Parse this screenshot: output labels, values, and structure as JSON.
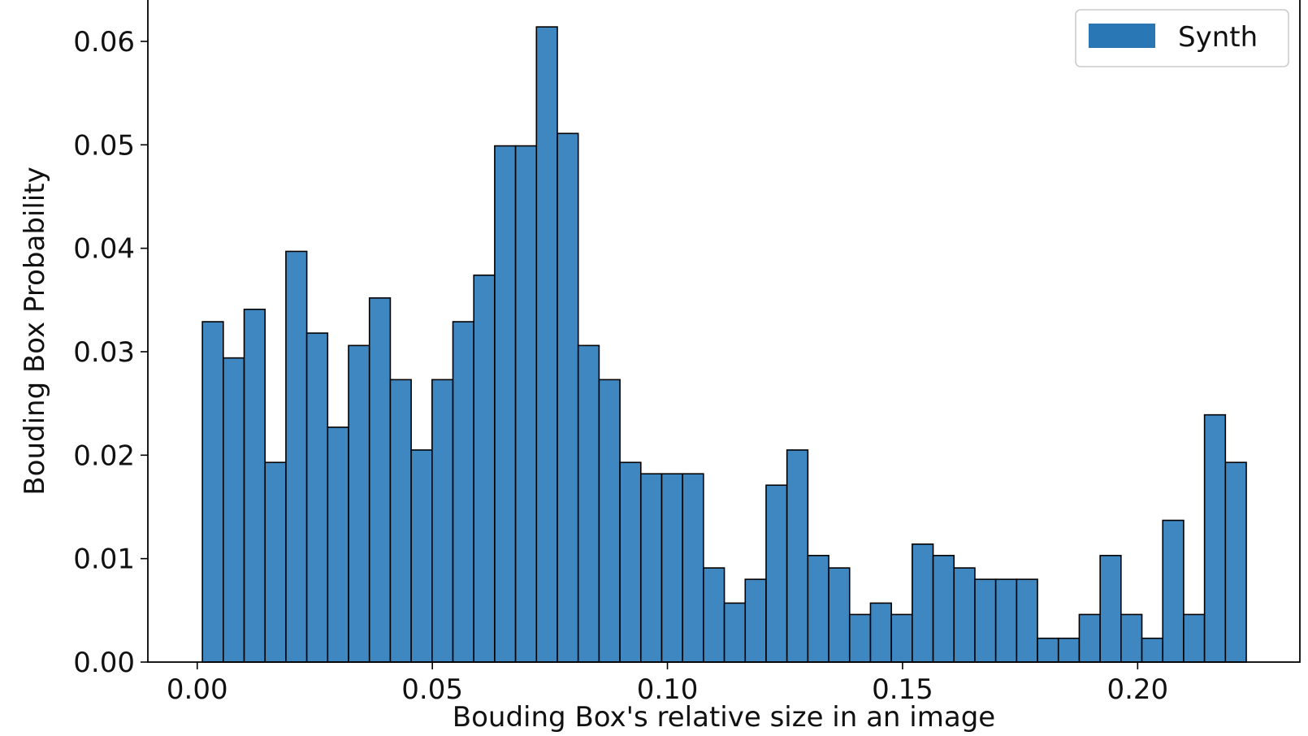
{
  "chart_data": {
    "type": "bar",
    "title": "",
    "xlabel": "Bouding Box's relative size in an image",
    "ylabel": "Bouding Box Probability",
    "xlim": [
      -0.0105,
      0.2345
    ],
    "ylim": [
      0,
      0.064
    ],
    "xticks": [
      0.0,
      0.05,
      0.1,
      0.15,
      0.2
    ],
    "xtick_labels": [
      "0.00",
      "0.05",
      "0.10",
      "0.15",
      "0.20"
    ],
    "yticks": [
      0.0,
      0.01,
      0.02,
      0.03,
      0.04,
      0.05,
      0.06
    ],
    "ytick_labels": [
      "0.00",
      "0.01",
      "0.02",
      "0.03",
      "0.04",
      "0.05",
      "0.06"
    ],
    "grid": false,
    "legend_position": "top-right",
    "bin_start": 0.0011,
    "bin_width": 0.00444,
    "series": [
      {
        "name": "Synth",
        "color": "#3f87c0",
        "edge_color": "#000000",
        "values": [
          0.0329,
          0.0294,
          0.0341,
          0.0193,
          0.0397,
          0.0318,
          0.0227,
          0.0306,
          0.0352,
          0.0273,
          0.0205,
          0.0273,
          0.0329,
          0.0374,
          0.0499,
          0.0499,
          0.0614,
          0.0511,
          0.0306,
          0.0273,
          0.0193,
          0.0182,
          0.0182,
          0.0182,
          0.0091,
          0.0057,
          0.008,
          0.0171,
          0.0205,
          0.0103,
          0.0091,
          0.0046,
          0.0057,
          0.0046,
          0.0114,
          0.0103,
          0.0091,
          0.008,
          0.008,
          0.008,
          0.0023,
          0.0023,
          0.0046,
          0.0103,
          0.0046,
          0.0023,
          0.0137,
          0.0046,
          0.0239,
          0.0193
        ]
      }
    ]
  }
}
